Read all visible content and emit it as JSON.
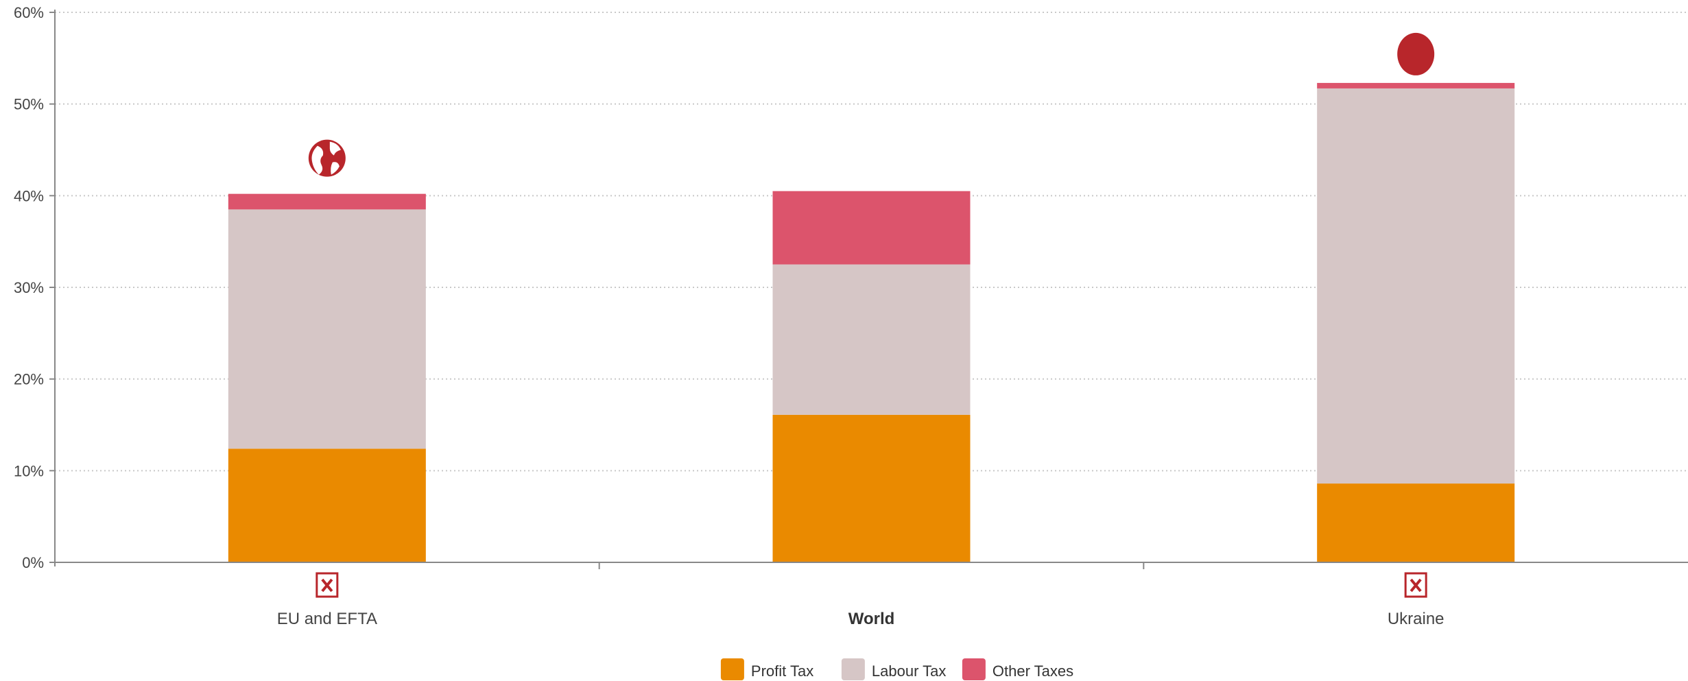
{
  "chart_data": {
    "type": "bar",
    "stacked": true,
    "categories": [
      "EU and EFTA",
      "World",
      "Ukraine"
    ],
    "highlighted_category": "World",
    "series": [
      {
        "name": "Profit Tax",
        "values": [
          12.4,
          16.1,
          8.6
        ],
        "color": "#ea8a00"
      },
      {
        "name": "Labour Tax",
        "values": [
          26.1,
          16.4,
          43.1
        ],
        "color": "#d6c6c6"
      },
      {
        "name": "Other Taxes",
        "values": [
          1.7,
          8.0,
          0.6
        ],
        "color": "#dc546c"
      }
    ],
    "ylim": [
      0,
      60
    ],
    "yticks": [
      0,
      10,
      20,
      30,
      40,
      50,
      60
    ],
    "ytick_labels": [
      "0%",
      "10%",
      "20%",
      "30%",
      "40%",
      "50%",
      "60%"
    ],
    "grid": true,
    "legend_position": "bottom-center",
    "markers": [
      {
        "category": "EU and EFTA",
        "top_icon": "globe-icon",
        "bottom_icon": "broken-image-icon"
      },
      {
        "category": "World",
        "top_icon": "",
        "bottom_icon": ""
      },
      {
        "category": "Ukraine",
        "top_icon": "dot-icon",
        "bottom_icon": "broken-image-icon"
      }
    ],
    "marker_color": "#b8262b"
  }
}
